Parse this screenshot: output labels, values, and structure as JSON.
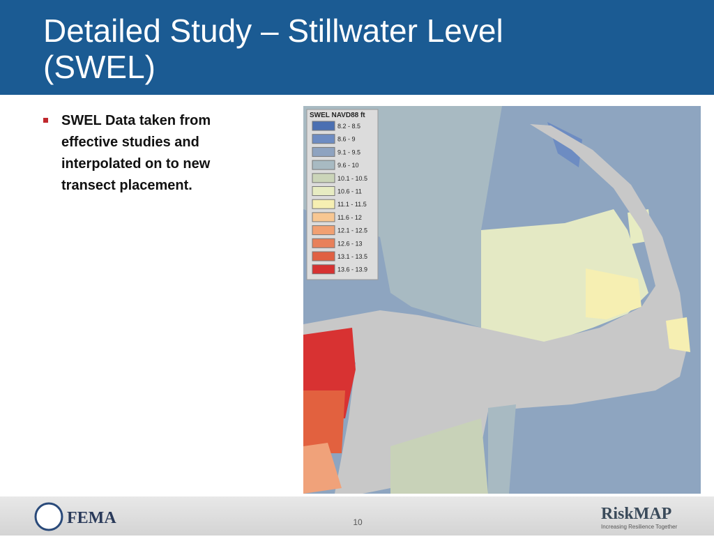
{
  "header": {
    "title_line1": "Detailed Study – Stillwater Level",
    "title_line2": "(SWEL)"
  },
  "bullets": [
    {
      "lines": [
        "SWEL Data taken from",
        "effective studies and",
        "interpolated on to new",
        "transect placement."
      ]
    }
  ],
  "map": {
    "legend": {
      "title": "SWEL NAVD88 ft",
      "items": [
        {
          "label": "8.2 - 8.5",
          "color": "#4a6fb2"
        },
        {
          "label": "8.6 - 9",
          "color": "#6d8cc2"
        },
        {
          "label": "9.1 - 9.5",
          "color": "#8ea3c0"
        },
        {
          "label": "9.6 - 10",
          "color": "#a8bac2"
        },
        {
          "label": "10.1 - 10.5",
          "color": "#cbd5b9"
        },
        {
          "label": "10.6 - 11",
          "color": "#e7ecc2"
        },
        {
          "label": "11.1 - 11.5",
          "color": "#f6efb2"
        },
        {
          "label": "11.6 - 12",
          "color": "#f8c792"
        },
        {
          "label": "12.1 - 12.5",
          "color": "#f1a072"
        },
        {
          "label": "12.6 - 13",
          "color": "#e8805a"
        },
        {
          "label": "13.1 - 13.5",
          "color": "#e06042"
        },
        {
          "label": "13.6 - 13.9",
          "color": "#d63232"
        }
      ]
    }
  },
  "footer": {
    "page_number": "10",
    "left_logo": "FEMA",
    "right_logo": "RiskMAP",
    "right_tagline": "Increasing Resilience Together"
  }
}
